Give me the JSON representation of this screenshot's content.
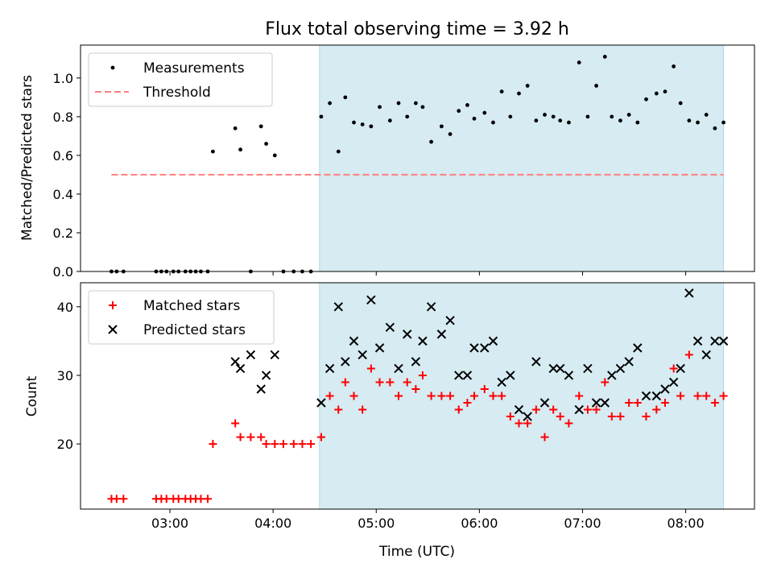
{
  "chart_data": [
    {
      "type": "scatter",
      "title": "Flux total observing time = 3.92 h",
      "xlabel": "",
      "ylabel": "Matched/Predicted stars",
      "xlim": [
        "02:08",
        "08:40"
      ],
      "ylim": [
        0,
        1.17
      ],
      "xticks": [
        "03:00",
        "04:00",
        "05:00",
        "06:00",
        "07:00",
        "08:00"
      ],
      "yticks": [
        0.0,
        0.2,
        0.4,
        0.6,
        0.8,
        1.0
      ],
      "ytick_labels": [
        "0.0",
        "0.2",
        "0.4",
        "0.6",
        "0.8",
        "1.0"
      ],
      "shaded_region": {
        "from": "04:27",
        "to": "08:22",
        "color": "#add8e6"
      },
      "legend_position": "upper left",
      "legend": [
        {
          "label": "Measurements",
          "marker": "dot",
          "color": "#000000"
        },
        {
          "label": "Threshold",
          "marker": "dashed-line",
          "color": "#ff7f7f"
        }
      ],
      "threshold": {
        "value": 0.5,
        "from": "02:26",
        "to": "08:22"
      },
      "series": [
        {
          "name": "Measurements",
          "x": [
            "02:26",
            "02:29",
            "02:33",
            "02:52",
            "02:55",
            "02:58",
            "03:02",
            "03:05",
            "03:09",
            "03:12",
            "03:15",
            "03:18",
            "03:22",
            "03:25",
            "03:38",
            "03:41",
            "03:47",
            "03:53",
            "03:56",
            "04:01",
            "04:06",
            "04:12",
            "04:17",
            "04:22",
            "04:28",
            "04:33",
            "04:38",
            "04:42",
            "04:47",
            "04:52",
            "04:57",
            "05:02",
            "05:08",
            "05:13",
            "05:18",
            "05:23",
            "05:27",
            "05:32",
            "05:38",
            "05:43",
            "05:48",
            "05:53",
            "05:57",
            "06:03",
            "06:08",
            "06:13",
            "06:18",
            "06:23",
            "06:28",
            "06:33",
            "06:38",
            "06:43",
            "06:47",
            "06:52",
            "06:58",
            "07:03",
            "07:08",
            "07:13",
            "07:17",
            "07:22",
            "07:27",
            "07:32",
            "07:37",
            "07:43",
            "07:48",
            "07:53",
            "07:57",
            "08:02",
            "08:07",
            "08:12",
            "08:17",
            "08:22"
          ],
          "y": [
            0,
            0,
            0,
            0,
            0,
            0,
            0,
            0,
            0,
            0,
            0,
            0,
            0,
            0.62,
            0.74,
            0.63,
            0,
            0.75,
            0.66,
            0.6,
            0,
            0,
            0,
            0,
            0.8,
            0.87,
            0.62,
            0.9,
            0.77,
            0.76,
            0.75,
            0.85,
            0.78,
            0.87,
            0.8,
            0.87,
            0.85,
            0.67,
            0.75,
            0.71,
            0.83,
            0.86,
            0.79,
            0.82,
            0.77,
            0.93,
            0.8,
            0.92,
            0.96,
            0.78,
            0.81,
            0.8,
            0.78,
            0.77,
            1.08,
            0.8,
            0.96,
            1.11,
            0.8,
            0.78,
            0.81,
            0.77,
            0.89,
            0.92,
            0.93,
            1.06,
            0.87,
            0.78,
            0.77,
            0.81,
            0.74,
            0.77
          ]
        }
      ]
    },
    {
      "type": "scatter",
      "title": "",
      "xlabel": "Time (UTC)",
      "ylabel": "Count",
      "xlim": [
        "02:08",
        "08:40"
      ],
      "ylim": [
        10.5,
        43.5
      ],
      "xticks": [
        "03:00",
        "04:00",
        "05:00",
        "06:00",
        "07:00",
        "08:00"
      ],
      "yticks": [
        20,
        30,
        40
      ],
      "ytick_labels": [
        "20",
        "30",
        "40"
      ],
      "shaded_region": {
        "from": "04:27",
        "to": "08:22",
        "color": "#add8e6"
      },
      "legend_position": "upper left",
      "legend": [
        {
          "label": "Matched stars",
          "marker": "plus",
          "color": "#ff0000"
        },
        {
          "label": "Predicted stars",
          "marker": "x",
          "color": "#000000"
        }
      ],
      "series": [
        {
          "name": "Matched stars",
          "x": [
            "02:26",
            "02:29",
            "02:33",
            "02:52",
            "02:55",
            "02:58",
            "03:02",
            "03:05",
            "03:09",
            "03:12",
            "03:15",
            "03:18",
            "03:22",
            "03:25",
            "03:38",
            "03:41",
            "03:47",
            "03:53",
            "03:56",
            "04:01",
            "04:06",
            "04:12",
            "04:17",
            "04:22",
            "04:28",
            "04:33",
            "04:38",
            "04:42",
            "04:47",
            "04:52",
            "04:57",
            "05:02",
            "05:08",
            "05:13",
            "05:18",
            "05:23",
            "05:27",
            "05:32",
            "05:38",
            "05:43",
            "05:48",
            "05:53",
            "05:57",
            "06:03",
            "06:08",
            "06:13",
            "06:18",
            "06:23",
            "06:28",
            "06:33",
            "06:38",
            "06:43",
            "06:47",
            "06:52",
            "06:58",
            "07:03",
            "07:08",
            "07:13",
            "07:17",
            "07:22",
            "07:27",
            "07:32",
            "07:37",
            "07:43",
            "07:48",
            "07:53",
            "07:57",
            "08:02",
            "08:07",
            "08:12",
            "08:17",
            "08:22"
          ],
          "y": [
            12,
            12,
            12,
            12,
            12,
            12,
            12,
            12,
            12,
            12,
            12,
            12,
            12,
            20,
            23,
            21,
            21,
            21,
            20,
            20,
            20,
            20,
            20,
            20,
            21,
            27,
            25,
            29,
            27,
            25,
            31,
            29,
            29,
            27,
            29,
            28,
            30,
            27,
            27,
            27,
            25,
            26,
            27,
            28,
            27,
            27,
            24,
            23,
            23,
            25,
            21,
            25,
            24,
            23,
            27,
            25,
            25,
            29,
            24,
            24,
            26,
            26,
            24,
            25,
            26,
            31,
            27,
            33,
            27,
            27,
            26,
            27
          ]
        },
        {
          "name": "Predicted stars",
          "x": [
            "04:28",
            "04:33",
            "04:38",
            "04:42",
            "04:47",
            "04:52",
            "04:57",
            "05:02",
            "05:08",
            "05:13",
            "05:18",
            "05:23",
            "05:27",
            "05:32",
            "05:38",
            "05:43",
            "05:48",
            "05:53",
            "05:57",
            "06:03",
            "06:08",
            "06:13",
            "06:18",
            "06:23",
            "06:28",
            "06:33",
            "06:38",
            "06:43",
            "06:47",
            "06:52",
            "06:58",
            "07:03",
            "07:08",
            "07:13",
            "07:17",
            "07:22",
            "07:27",
            "07:32",
            "07:37",
            "07:43",
            "07:48",
            "07:53",
            "07:57",
            "08:02",
            "08:07",
            "08:12",
            "08:17",
            "08:22",
            "03:38",
            "03:41",
            "03:47",
            "03:53",
            "03:56",
            "04:01"
          ],
          "y": [
            26,
            31,
            40,
            32,
            35,
            33,
            41,
            34,
            37,
            31,
            36,
            32,
            35,
            40,
            36,
            38,
            30,
            30,
            34,
            34,
            35,
            29,
            30,
            25,
            24,
            32,
            26,
            31,
            31,
            30,
            25,
            31,
            26,
            26,
            30,
            31,
            32,
            34,
            27,
            27,
            28,
            29,
            31,
            42,
            35,
            33,
            35,
            35,
            32,
            31,
            33,
            28,
            30,
            33
          ]
        }
      ]
    }
  ]
}
